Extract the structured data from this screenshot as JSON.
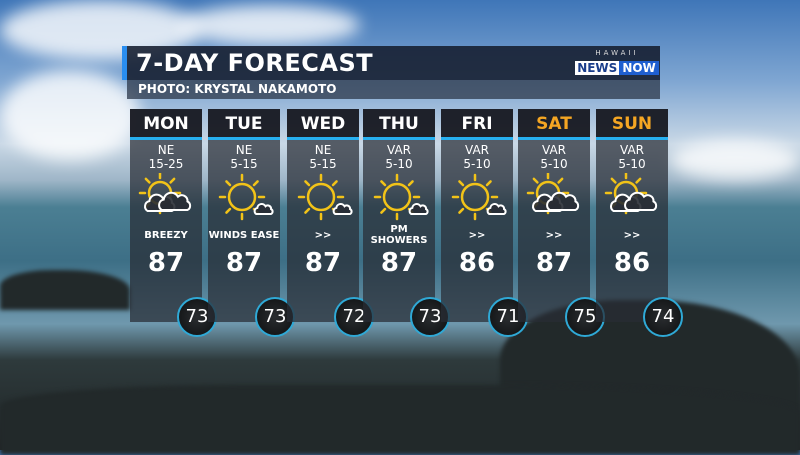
{
  "header": {
    "title": "7-DAY FORECAST",
    "credit": "PHOTO: KRYSTAL NAKAMOTO"
  },
  "logo": {
    "top": "HAWAII",
    "news": "NEWS",
    "now": "NOW"
  },
  "colors": {
    "accent": "#27b0f0",
    "weekend": "#f5a623",
    "sun": "#f2c318"
  },
  "days": [
    {
      "day": "MON",
      "wind_dir": "NE",
      "wind_speed": "15-25",
      "icon": "partly-cloudy-icon",
      "desc": "BREEZY",
      "high": "87",
      "low": "73",
      "weekend": false
    },
    {
      "day": "TUE",
      "wind_dir": "NE",
      "wind_speed": "5-15",
      "icon": "sunny-small-cloud-icon",
      "desc": "WINDS EASE",
      "high": "87",
      "low": "73",
      "weekend": false
    },
    {
      "day": "WED",
      "wind_dir": "NE",
      "wind_speed": "5-15",
      "icon": "sunny-small-cloud-icon",
      "desc": ">>",
      "high": "87",
      "low": "72",
      "weekend": false
    },
    {
      "day": "THU",
      "wind_dir": "VAR",
      "wind_speed": "5-10",
      "icon": "sunny-small-cloud-icon",
      "desc": "PM SHOWERS",
      "high": "87",
      "low": "73",
      "weekend": false
    },
    {
      "day": "FRI",
      "wind_dir": "VAR",
      "wind_speed": "5-10",
      "icon": "sunny-small-cloud-icon",
      "desc": ">>",
      "high": "86",
      "low": "71",
      "weekend": false
    },
    {
      "day": "SAT",
      "wind_dir": "VAR",
      "wind_speed": "5-10",
      "icon": "partly-cloudy-icon",
      "desc": ">>",
      "high": "87",
      "low": "75",
      "weekend": true
    },
    {
      "day": "SUN",
      "wind_dir": "VAR",
      "wind_speed": "5-10",
      "icon": "partly-cloudy-icon",
      "desc": ">>",
      "high": "86",
      "low": "74",
      "weekend": true
    }
  ]
}
